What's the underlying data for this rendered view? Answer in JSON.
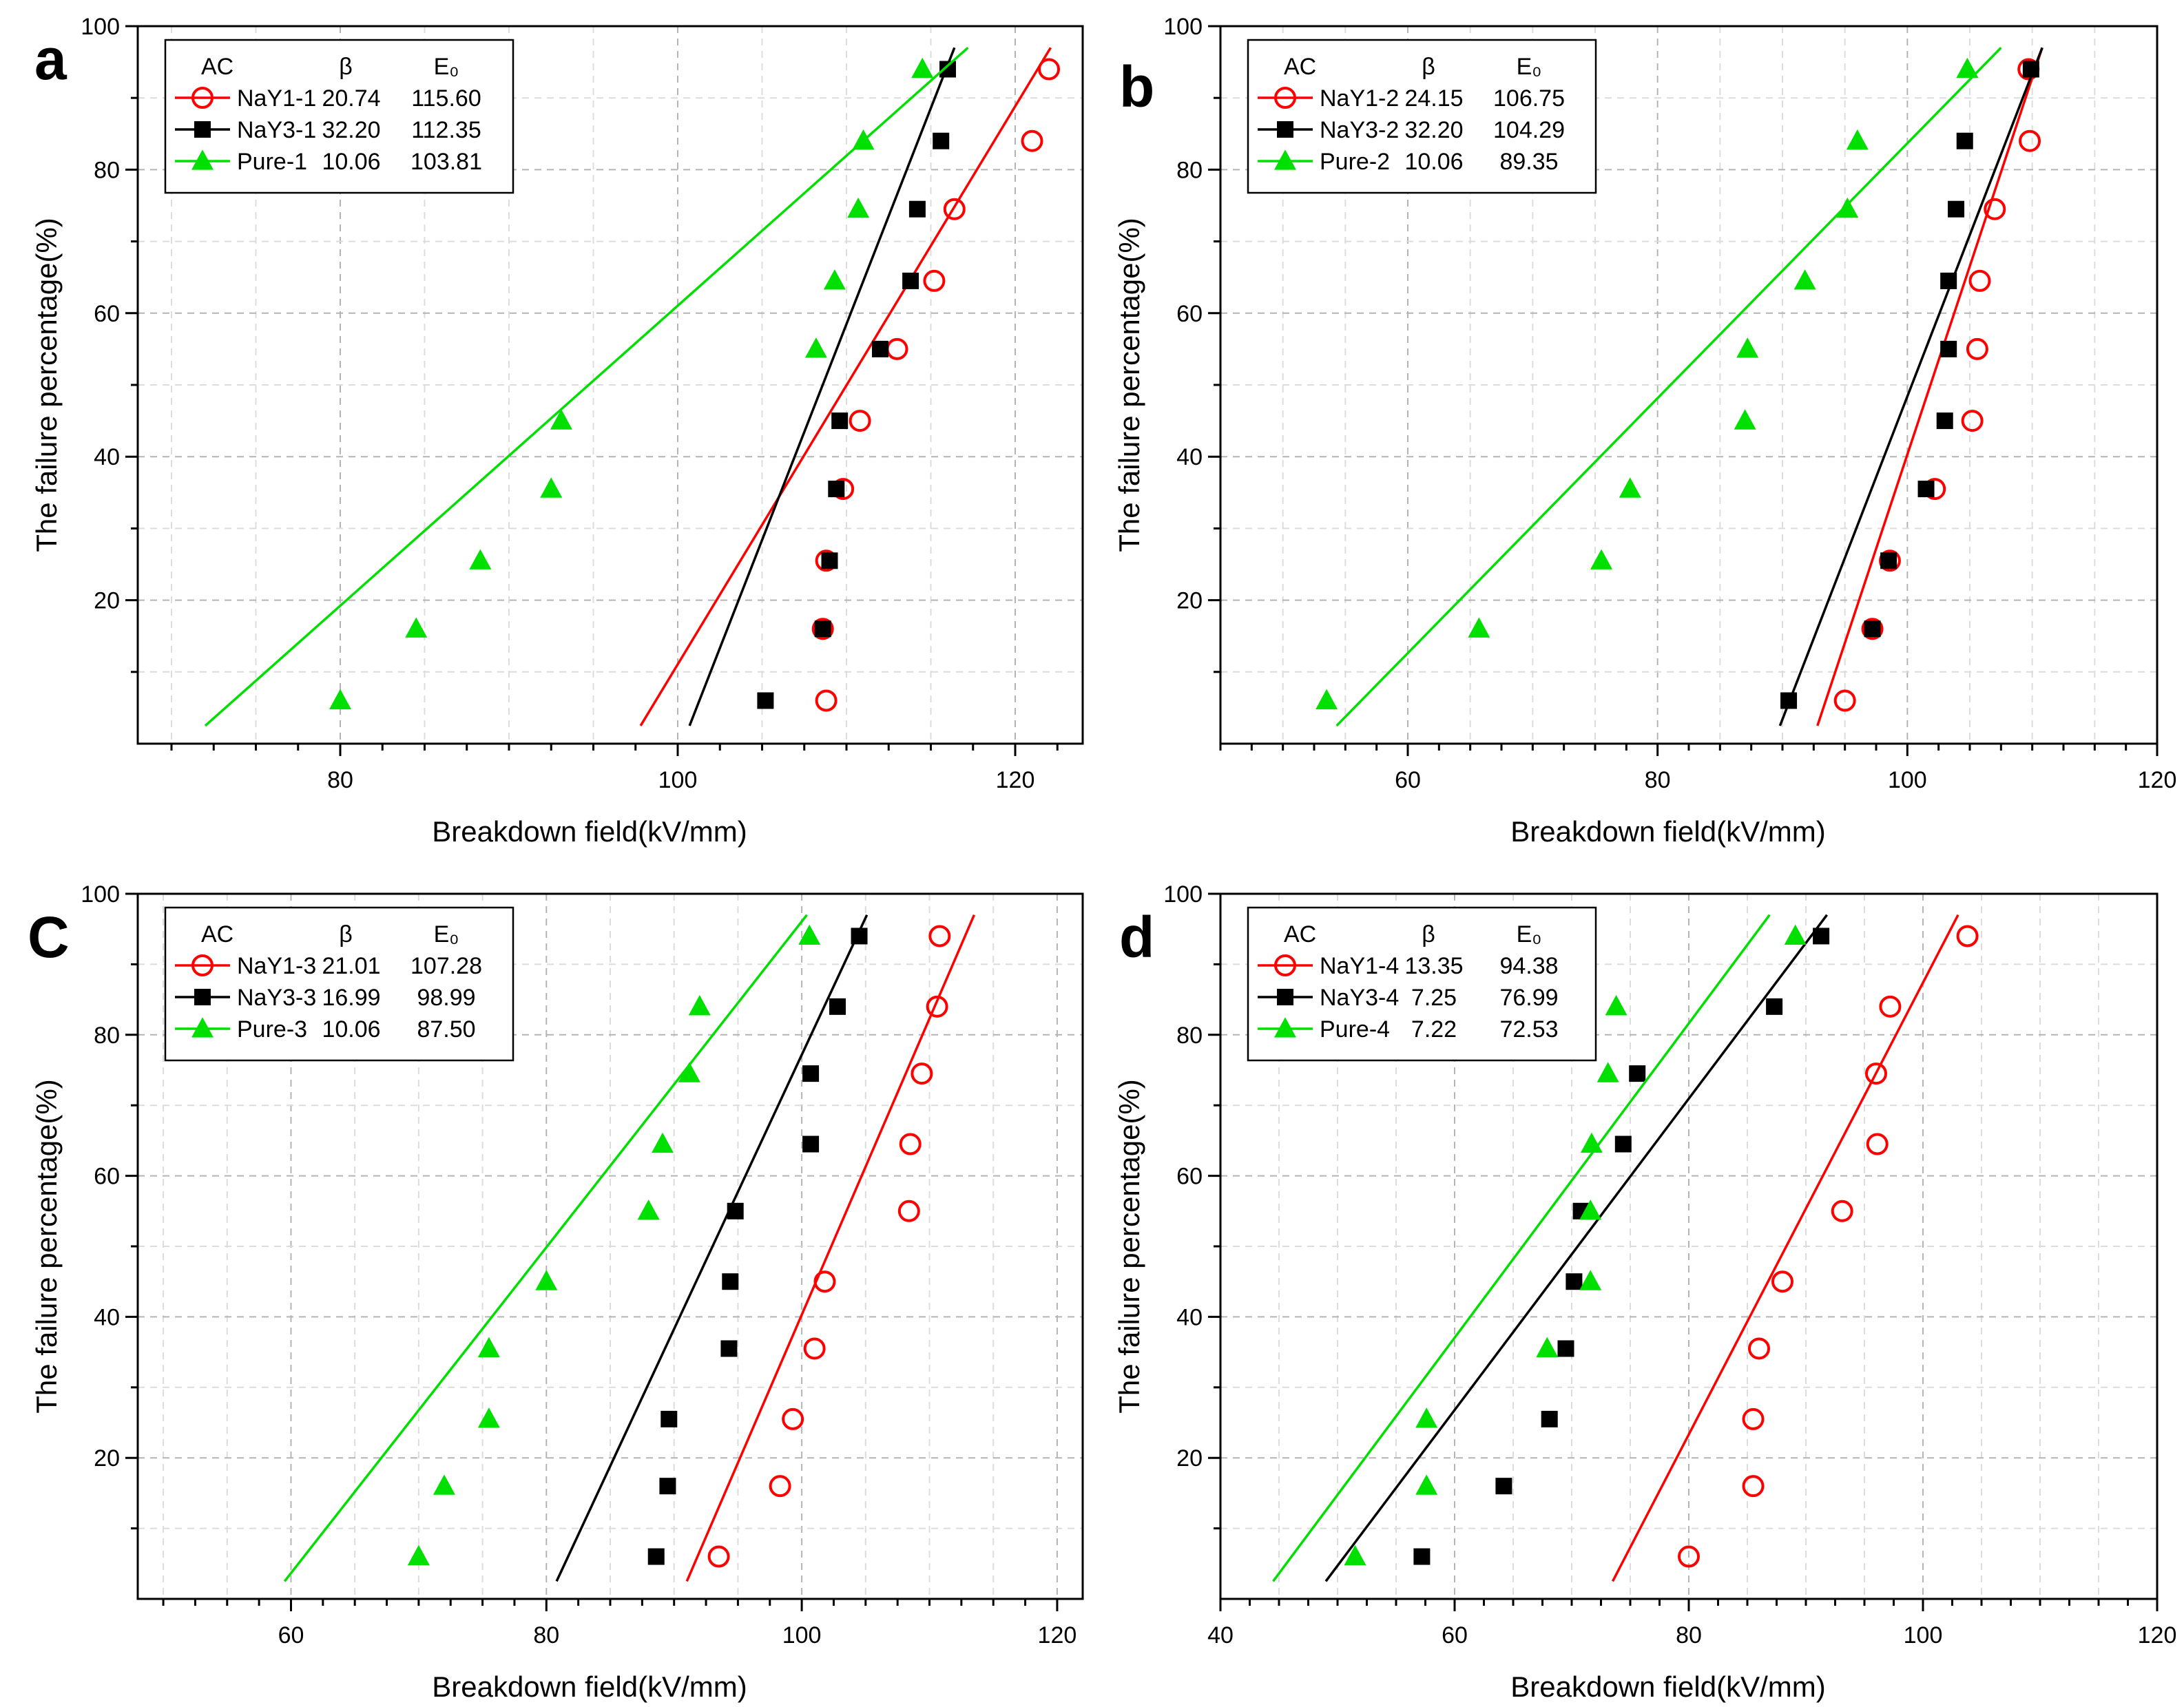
{
  "colors": {
    "red": "#ff0000",
    "black": "#000000",
    "green": "#00e000",
    "grid": "#c8c8c8",
    "axis": "#000000"
  },
  "chart_data": [
    {
      "panel_label": "a",
      "type": "scatter",
      "xlabel": "Breakdown field(kV/mm)",
      "ylabel": "The failure percentage(%)",
      "xlim": [
        68,
        124
      ],
      "ylim": [
        0,
        100
      ],
      "xticks": [
        80,
        100,
        120
      ],
      "xtick_labels": [
        "80",
        "100",
        "120"
      ],
      "yticks": [
        20,
        40,
        60,
        80,
        100
      ],
      "ytick_labels": [
        "20",
        "40",
        "60",
        "80",
        "100"
      ],
      "legend": {
        "header": {
          "name": "AC",
          "beta": "β",
          "e0": "E₀"
        },
        "rows": [
          {
            "name": "NaY1-1",
            "beta": "20.74",
            "e0": "115.60"
          },
          {
            "name": "NaY3-1",
            "beta": "32.20",
            "e0": "112.35"
          },
          {
            "name": "Pure-1",
            "beta": "10.06",
            "e0": "103.81"
          }
        ]
      },
      "series": [
        {
          "name": "NaY1-1",
          "marker": "circle",
          "color": "#ff0000",
          "x": [
            108.8,
            108.6,
            108.8,
            109.8,
            110.8,
            113.0,
            115.2,
            116.4,
            121.0,
            122.0
          ],
          "y": [
            6,
            16,
            25.5,
            35.5,
            45,
            55,
            64.5,
            74.5,
            84,
            94
          ],
          "fit": [
            [
              97.8,
              2.5
            ],
            [
              122.1,
              97
            ]
          ]
        },
        {
          "name": "NaY3-1",
          "marker": "square",
          "color": "#000000",
          "x": [
            105.2,
            108.6,
            109.0,
            109.4,
            109.6,
            112.0,
            113.8,
            114.2,
            115.6,
            116.0
          ],
          "y": [
            6,
            16,
            25.5,
            35.5,
            45,
            55,
            64.5,
            74.5,
            84,
            94
          ],
          "fit": [
            [
              100.7,
              2.5
            ],
            [
              116.4,
              97
            ]
          ]
        },
        {
          "name": "Pure-1",
          "marker": "triangle",
          "color": "#00e000",
          "x": [
            80.0,
            84.5,
            88.3,
            92.5,
            93.1,
            108.2,
            109.3,
            110.7,
            111.0,
            114.5
          ],
          "y": [
            6,
            16,
            25.5,
            35.5,
            45,
            55,
            64.5,
            74.5,
            84,
            94
          ],
          "fit": [
            [
              72.0,
              2.5
            ],
            [
              117.2,
              97
            ]
          ]
        }
      ]
    },
    {
      "panel_label": "b",
      "type": "scatter",
      "xlabel": "Breakdown field(kV/mm)",
      "ylabel": "The failure percentage(%)",
      "xlim": [
        45,
        120
      ],
      "ylim": [
        0,
        100
      ],
      "xticks": [
        60,
        80,
        100,
        120
      ],
      "xtick_labels": [
        "60",
        "80",
        "100",
        "120"
      ],
      "yticks": [
        20,
        40,
        60,
        80,
        100
      ],
      "ytick_labels": [
        "20",
        "40",
        "60",
        "80",
        "100"
      ],
      "legend": {
        "header": {
          "name": "AC",
          "beta": "β",
          "e0": "E₀"
        },
        "rows": [
          {
            "name": "NaY1-2",
            "beta": "24.15",
            "e0": "106.75"
          },
          {
            "name": "NaY3-2",
            "beta": "32.20",
            "e0": "104.29"
          },
          {
            "name": "Pure-2",
            "beta": "10.06",
            "e0": "89.35"
          }
        ]
      },
      "series": [
        {
          "name": "NaY1-2",
          "marker": "circle",
          "color": "#ff0000",
          "x": [
            95.0,
            97.2,
            98.6,
            102.2,
            105.2,
            105.6,
            105.8,
            107.0,
            109.8,
            109.7
          ],
          "y": [
            6,
            16,
            25.5,
            35.5,
            45,
            55,
            64.5,
            74.5,
            84,
            94
          ],
          "fit": [
            [
              92.8,
              2.5
            ],
            [
              110.8,
              97
            ]
          ]
        },
        {
          "name": "NaY3-2",
          "marker": "square",
          "color": "#000000",
          "x": [
            90.5,
            97.2,
            98.5,
            101.5,
            103.0,
            103.3,
            103.3,
            103.9,
            104.6,
            109.9
          ],
          "y": [
            6,
            16,
            25.5,
            35.5,
            45,
            55,
            64.5,
            74.5,
            84,
            94
          ],
          "fit": [
            [
              89.8,
              2.5
            ],
            [
              110.8,
              97
            ]
          ]
        },
        {
          "name": "Pure-2",
          "marker": "triangle",
          "color": "#00e000",
          "x": [
            53.5,
            65.7,
            75.5,
            77.8,
            87.0,
            87.2,
            91.8,
            95.2,
            96.0,
            104.8
          ],
          "y": [
            6,
            16,
            25.5,
            35.5,
            45,
            55,
            64.5,
            74.5,
            84,
            94
          ],
          "fit": [
            [
              54.3,
              2.5
            ],
            [
              107.5,
              97
            ]
          ]
        }
      ]
    },
    {
      "panel_label": "C",
      "type": "scatter",
      "xlabel": "Breakdown field(kV/mm)",
      "ylabel": "The failure percentage(%)",
      "xlim": [
        48,
        122
      ],
      "ylim": [
        0,
        100
      ],
      "xticks": [
        60,
        80,
        100,
        120
      ],
      "xtick_labels": [
        "60",
        "80",
        "100",
        "120"
      ],
      "yticks": [
        20,
        40,
        60,
        80,
        100
      ],
      "ytick_labels": [
        "20",
        "40",
        "60",
        "80",
        "100"
      ],
      "legend": {
        "header": {
          "name": "AC",
          "beta": "β",
          "e0": "E₀"
        },
        "rows": [
          {
            "name": "NaY1-3",
            "beta": "21.01",
            "e0": "107.28"
          },
          {
            "name": "NaY3-3",
            "beta": "16.99",
            "e0": "98.99"
          },
          {
            "name": "Pure-3",
            "beta": "10.06",
            "e0": "87.50"
          }
        ]
      },
      "series": [
        {
          "name": "NaY1-3",
          "marker": "circle",
          "color": "#ff0000",
          "x": [
            93.5,
            98.3,
            99.3,
            101.0,
            101.8,
            108.4,
            108.5,
            109.4,
            110.6,
            110.8
          ],
          "y": [
            6,
            16,
            25.5,
            35.5,
            45,
            55,
            64.5,
            74.5,
            84,
            94
          ],
          "fit": [
            [
              91.0,
              2.5
            ],
            [
              113.5,
              97
            ]
          ]
        },
        {
          "name": "NaY3-3",
          "marker": "square",
          "color": "#000000",
          "x": [
            88.6,
            89.5,
            89.6,
            94.3,
            94.4,
            94.8,
            100.7,
            100.7,
            102.8,
            104.5
          ],
          "y": [
            6,
            16,
            25.5,
            35.5,
            45,
            55,
            64.5,
            74.5,
            84,
            94
          ],
          "fit": [
            [
              80.8,
              2.5
            ],
            [
              105.1,
              97
            ]
          ]
        },
        {
          "name": "Pure-3",
          "marker": "triangle",
          "color": "#00e000",
          "x": [
            70.0,
            72.0,
            75.5,
            75.5,
            80.0,
            88.0,
            89.1,
            91.2,
            92.0,
            100.6
          ],
          "y": [
            6,
            16,
            25.5,
            35.5,
            45,
            55,
            64.5,
            74.5,
            84,
            94
          ],
          "fit": [
            [
              59.5,
              2.5
            ],
            [
              100.4,
              97
            ]
          ]
        }
      ]
    },
    {
      "panel_label": "d",
      "type": "scatter",
      "xlabel": "Breakdown field(kV/mm)",
      "ylabel": "The failure percentage(%)",
      "xlim": [
        40,
        120
      ],
      "ylim": [
        0,
        100
      ],
      "xticks": [
        40,
        60,
        80,
        100,
        120
      ],
      "xtick_labels": [
        "40",
        "60",
        "80",
        "100",
        "120"
      ],
      "yticks": [
        20,
        40,
        60,
        80,
        100
      ],
      "ytick_labels": [
        "20",
        "40",
        "60",
        "80",
        "100"
      ],
      "legend": {
        "header": {
          "name": "AC",
          "beta": "β",
          "e0": "E₀"
        },
        "rows": [
          {
            "name": "NaY1-4",
            "beta": "13.35",
            "e0": "94.38"
          },
          {
            "name": "NaY3-4",
            "beta": "7.25",
            "e0": "76.99"
          },
          {
            "name": "Pure-4",
            "beta": "7.22",
            "e0": "72.53"
          }
        ]
      },
      "series": [
        {
          "name": "NaY1-4",
          "marker": "circle",
          "color": "#ff0000",
          "x": [
            80.0,
            85.5,
            85.5,
            86.0,
            88.0,
            93.1,
            96.1,
            96.0,
            97.2,
            103.8
          ],
          "y": [
            6,
            16,
            25.5,
            35.5,
            45,
            55,
            64.5,
            74.5,
            84,
            94
          ],
          "fit": [
            [
              73.5,
              2.5
            ],
            [
              103.0,
              97
            ]
          ]
        },
        {
          "name": "NaY3-4",
          "marker": "square",
          "color": "#000000",
          "x": [
            57.2,
            64.2,
            68.1,
            69.5,
            70.2,
            70.8,
            74.4,
            75.6,
            87.3,
            91.3
          ],
          "y": [
            6,
            16,
            25.5,
            35.5,
            45,
            55,
            64.5,
            74.5,
            84,
            94
          ],
          "fit": [
            [
              49.0,
              2.5
            ],
            [
              91.8,
              97
            ]
          ]
        },
        {
          "name": "Pure-4",
          "marker": "triangle",
          "color": "#00e000",
          "x": [
            51.5,
            57.6,
            57.6,
            67.9,
            71.6,
            71.6,
            71.7,
            73.1,
            73.8,
            89.1
          ],
          "y": [
            6,
            16,
            25.5,
            35.5,
            45,
            55,
            64.5,
            74.5,
            84,
            94
          ],
          "fit": [
            [
              44.5,
              2.5
            ],
            [
              86.9,
              97
            ]
          ]
        }
      ]
    }
  ]
}
